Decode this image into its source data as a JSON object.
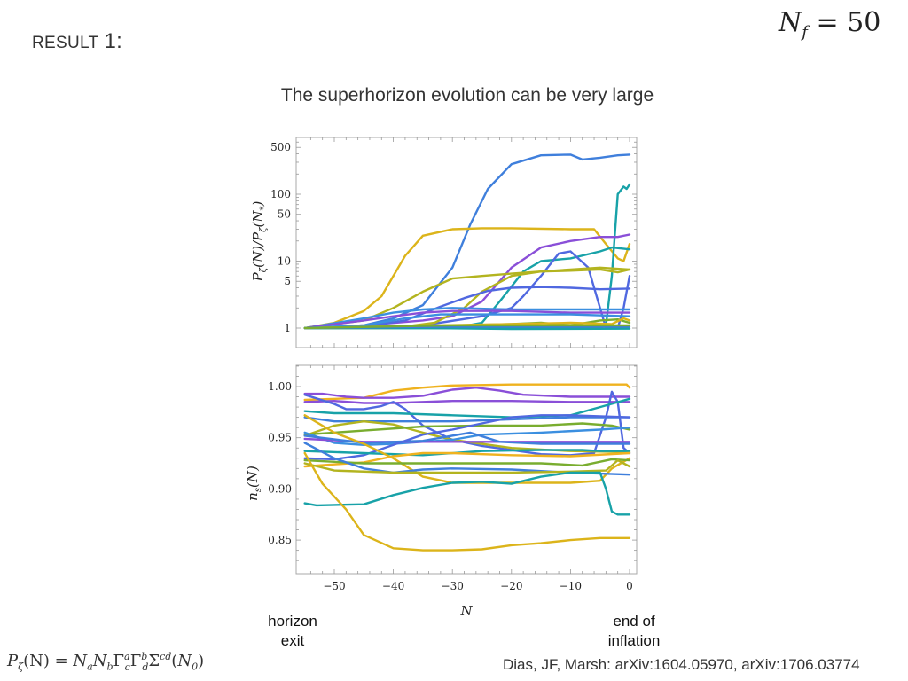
{
  "slide": {
    "heading_word": "RESULT",
    "heading_number": "1:",
    "nf_symbol": "N",
    "nf_subscript": "f",
    "nf_value": "= 50",
    "subtitle": "The superhorizon evolution can be very large",
    "formula": {
      "lhs": "P",
      "lhs_sub": "ζ",
      "lhs_arg": "(N) = ",
      "rhs": "N_a N_b Γ^a_c Γ^b_d Σ^{cd}(N_0)"
    },
    "annotations": {
      "horizon_exit": [
        "horizon",
        "exit"
      ],
      "end_of_inflation": [
        "end of",
        "inflation"
      ]
    },
    "citation": "Dias, JF, Marsh: arXiv:1604.05970, arXiv:1706.03774"
  },
  "palette": {
    "blue": "#3f7fdc",
    "yellow": "#dcb41a",
    "orange": "#efb21f",
    "purple": "#8a4fd8",
    "teal": "#18a2a8",
    "green": "#79ad2f",
    "olive": "#b3b41f",
    "royal": "#5068e0",
    "sky": "#3b8fe0",
    "frame": "#a9a9a9"
  },
  "chart_data": [
    {
      "type": "line",
      "title": "",
      "xlabel": "",
      "ylabel": "P_ζ(N)/P_ζ(N_*)",
      "yscale": "log",
      "xlim": [
        -55,
        0
      ],
      "ylim": [
        0.75,
        650
      ],
      "xticks": [
        -50,
        -40,
        -30,
        -20,
        -10,
        0
      ],
      "yticks": [
        1,
        5,
        10,
        50,
        100,
        500
      ],
      "ytick_labels": [
        "1",
        "5",
        "10",
        "50",
        "100",
        "500"
      ],
      "grid": false,
      "series": [
        {
          "name": "blue-large",
          "color": "blue",
          "x": [
            -55,
            -45,
            -40,
            -35,
            -30,
            -27,
            -24,
            -20,
            -15,
            -10,
            -8,
            -5,
            -2,
            0
          ],
          "y": [
            1,
            1.1,
            1.4,
            2.2,
            8,
            35,
            120,
            280,
            380,
            390,
            330,
            350,
            380,
            390
          ]
        },
        {
          "name": "yellow-plateau",
          "color": "yellow",
          "x": [
            -55,
            -50,
            -45,
            -42,
            -38,
            -35,
            -30,
            -25,
            -20,
            -10,
            -6,
            -4,
            -2,
            -1,
            0
          ],
          "y": [
            1,
            1.2,
            1.8,
            3,
            12,
            24,
            30,
            31,
            31,
            30,
            30,
            18,
            11,
            10,
            18
          ]
        },
        {
          "name": "teal-late",
          "color": "teal",
          "x": [
            -55,
            -30,
            -10,
            -5,
            -4,
            -3,
            -2,
            -1,
            -0.5,
            0
          ],
          "y": [
            1,
            1,
            1,
            1,
            1.1,
            6,
            100,
            130,
            120,
            140
          ]
        },
        {
          "name": "purple-rise",
          "color": "purple",
          "x": [
            -55,
            -45,
            -35,
            -30,
            -25,
            -20,
            -15,
            -10,
            -5,
            -2,
            0
          ],
          "y": [
            1,
            1.1,
            1.3,
            1.5,
            2.5,
            8,
            16,
            20,
            23,
            23,
            25
          ]
        },
        {
          "name": "teal-mid",
          "color": "teal",
          "x": [
            -55,
            -40,
            -30,
            -25,
            -22,
            -18,
            -15,
            -10,
            -5,
            -3,
            0
          ],
          "y": [
            1,
            1,
            1,
            1.2,
            2.5,
            7,
            10,
            11,
            14,
            16,
            15
          ]
        },
        {
          "name": "royal-spike",
          "color": "royal",
          "x": [
            -55,
            -35,
            -25,
            -20,
            -18,
            -15,
            -12,
            -10,
            -7,
            -5,
            -4,
            -2,
            -1,
            0
          ],
          "y": [
            1,
            1.1,
            1.5,
            2,
            3,
            6,
            13,
            14,
            8,
            2,
            1,
            1,
            2,
            6
          ]
        },
        {
          "name": "olive-high",
          "color": "olive",
          "x": [
            -55,
            -45,
            -40,
            -35,
            -30,
            -25,
            -20,
            -15,
            -10,
            -5,
            -2,
            0
          ],
          "y": [
            1,
            1.3,
            2,
            3.5,
            5.5,
            6,
            6.5,
            7,
            7.2,
            7.5,
            6.8,
            7.5
          ]
        },
        {
          "name": "green-rise",
          "color": "olive",
          "x": [
            -55,
            -40,
            -33,
            -28,
            -25,
            -20,
            -15,
            -10,
            -5,
            0
          ],
          "y": [
            1,
            1,
            1.2,
            2,
            3.5,
            6,
            7,
            7.5,
            8,
            7.5
          ]
        },
        {
          "name": "blue-mid",
          "color": "royal",
          "x": [
            -55,
            -45,
            -38,
            -32,
            -28,
            -24,
            -20,
            -15,
            -10,
            -5,
            0
          ],
          "y": [
            1,
            1.05,
            1.3,
            2.1,
            2.8,
            3.6,
            4,
            4.1,
            4,
            3.8,
            3.9
          ]
        },
        {
          "name": "sky-1",
          "color": "sky",
          "x": [
            -55,
            -45,
            -40,
            -35,
            -30,
            -20,
            -10,
            0
          ],
          "y": [
            1,
            1.4,
            1.7,
            1.9,
            2,
            1.9,
            1.9,
            1.9
          ]
        },
        {
          "name": "purple-2",
          "color": "purple",
          "x": [
            -55,
            -45,
            -40,
            -35,
            -30,
            -20,
            -10,
            0
          ],
          "y": [
            1,
            1.3,
            1.5,
            1.7,
            1.8,
            1.8,
            1.7,
            1.7
          ]
        },
        {
          "name": "sky-2",
          "color": "sky",
          "x": [
            -55,
            -45,
            -38,
            -32,
            -25,
            -20,
            -10,
            0
          ],
          "y": [
            1,
            1.1,
            1.4,
            1.6,
            1.6,
            1.6,
            1.6,
            1.5
          ]
        },
        {
          "name": "green-low",
          "color": "green",
          "x": [
            -55,
            -30,
            -20,
            -15,
            -10,
            -5,
            -2,
            0
          ],
          "y": [
            1,
            1.1,
            1.15,
            1.2,
            1.1,
            1.3,
            1.35,
            1.2
          ]
        },
        {
          "name": "yellow-low",
          "color": "yellow",
          "x": [
            -55,
            -20,
            -10,
            -3,
            -1,
            0
          ],
          "y": [
            1,
            1.15,
            1.2,
            1.15,
            1.4,
            1.3
          ]
        },
        {
          "name": "teal-flat",
          "color": "teal",
          "x": [
            -55,
            -35,
            -20,
            0
          ],
          "y": [
            1,
            1,
            0.97,
            0.98
          ]
        },
        {
          "name": "blue-flat",
          "color": "blue",
          "x": [
            -55,
            -30,
            0
          ],
          "y": [
            1,
            1.05,
            1.05
          ]
        },
        {
          "name": "green-flat",
          "color": "green",
          "x": [
            -55,
            -30,
            0
          ],
          "y": [
            1,
            1.1,
            1.1
          ]
        }
      ]
    },
    {
      "type": "line",
      "title": "",
      "xlabel": "N",
      "ylabel": "n_s(N)",
      "xlim": [
        -56,
        1
      ],
      "ylim": [
        0.828,
        1.022
      ],
      "xticks": [
        -50,
        -40,
        -30,
        -20,
        -10,
        0
      ],
      "xtick_labels": [
        "−50",
        "−40",
        "−30",
        "−20",
        "−10",
        "0"
      ],
      "yticks": [
        0.85,
        0.9,
        0.95,
        1.0
      ],
      "ytick_labels": [
        "0.85",
        "0.90",
        "0.95",
        "1.00"
      ],
      "grid": false,
      "series": [
        {
          "name": "orange-top",
          "color": "orange",
          "x": [
            -55,
            -45,
            -40,
            -35,
            -30,
            -20,
            -10,
            -0.5,
            0
          ],
          "y": [
            0.987,
            0.989,
            0.996,
            0.999,
            1.001,
            1.002,
            1.002,
            1.002,
            0.999
          ]
        },
        {
          "name": "purple-top",
          "color": "purple",
          "x": [
            -55,
            -52,
            -48,
            -45,
            -40,
            -35,
            -30,
            -26,
            -22,
            -18,
            -10,
            0
          ],
          "y": [
            0.993,
            0.993,
            0.99,
            0.989,
            0.989,
            0.991,
            0.997,
            0.999,
            0.996,
            0.992,
            0.99,
            0.99
          ]
        },
        {
          "name": "purple-flat",
          "color": "purple",
          "x": [
            -55,
            -50,
            -45,
            -40,
            -35,
            -30,
            -20,
            -10,
            0
          ],
          "y": [
            0.985,
            0.986,
            0.984,
            0.984,
            0.985,
            0.986,
            0.986,
            0.985,
            0.985
          ]
        },
        {
          "name": "royal-cross",
          "color": "royal",
          "x": [
            -55,
            -50,
            -48,
            -45,
            -42,
            -40,
            -38,
            -35,
            -30,
            -25,
            -20,
            -15,
            -10,
            -6,
            -4,
            -3,
            -2,
            -1,
            0
          ],
          "y": [
            0.992,
            0.983,
            0.978,
            0.978,
            0.981,
            0.985,
            0.978,
            0.962,
            0.948,
            0.942,
            0.938,
            0.934,
            0.933,
            0.935,
            0.97,
            0.995,
            0.985,
            0.94,
            0.935
          ]
        },
        {
          "name": "teal-977",
          "color": "teal",
          "x": [
            -55,
            -50,
            -40,
            -30,
            -20,
            -10,
            -5,
            0
          ],
          "y": [
            0.976,
            0.974,
            0.974,
            0.972,
            0.97,
            0.972,
            0.98,
            0.988
          ]
        },
        {
          "name": "blue-970",
          "color": "blue",
          "x": [
            -55,
            -50,
            -40,
            -30,
            -20,
            -10,
            0
          ],
          "y": [
            0.97,
            0.966,
            0.966,
            0.966,
            0.968,
            0.97,
            0.97
          ]
        },
        {
          "name": "olive-arch",
          "color": "olive",
          "x": [
            -55,
            -50,
            -45,
            -40,
            -35,
            -30,
            -20,
            -10,
            0
          ],
          "y": [
            0.952,
            0.962,
            0.966,
            0.963,
            0.955,
            0.948,
            0.94,
            0.937,
            0.936
          ]
        },
        {
          "name": "green-960",
          "color": "green",
          "x": [
            -55,
            -45,
            -35,
            -25,
            -15,
            -8,
            -3,
            0
          ],
          "y": [
            0.953,
            0.957,
            0.961,
            0.962,
            0.962,
            0.964,
            0.962,
            0.958
          ]
        },
        {
          "name": "sky-960",
          "color": "sky",
          "x": [
            -55,
            -50,
            -45,
            -40,
            -35,
            -30,
            -25,
            -15,
            -5,
            0
          ],
          "y": [
            0.955,
            0.945,
            0.943,
            0.944,
            0.946,
            0.948,
            0.953,
            0.955,
            0.958,
            0.96
          ]
        },
        {
          "name": "purple-945",
          "color": "purple",
          "x": [
            -55,
            -45,
            -30,
            -15,
            0
          ],
          "y": [
            0.949,
            0.946,
            0.946,
            0.946,
            0.946
          ]
        },
        {
          "name": "blue-945",
          "color": "blue",
          "x": [
            -55,
            -45,
            -35,
            -27,
            -22,
            -15,
            0
          ],
          "y": [
            0.952,
            0.945,
            0.947,
            0.955,
            0.946,
            0.944,
            0.944
          ]
        },
        {
          "name": "royal-rise",
          "color": "royal",
          "x": [
            -55,
            -50,
            -45,
            -40,
            -35,
            -30,
            -25,
            -20,
            -15,
            -10,
            0
          ],
          "y": [
            0.93,
            0.929,
            0.933,
            0.943,
            0.953,
            0.958,
            0.964,
            0.97,
            0.972,
            0.972,
            0.97
          ]
        },
        {
          "name": "teal-937",
          "color": "teal",
          "x": [
            -55,
            -45,
            -35,
            -25,
            -15,
            -8,
            -5,
            0
          ],
          "y": [
            0.937,
            0.935,
            0.933,
            0.937,
            0.938,
            0.938,
            0.937,
            0.937
          ]
        },
        {
          "name": "yellow-drop",
          "color": "yellow",
          "x": [
            -55,
            -50,
            -45,
            -40,
            -35,
            -30,
            -20,
            -10,
            -5,
            -3,
            0
          ],
          "y": [
            0.972,
            0.955,
            0.944,
            0.93,
            0.912,
            0.906,
            0.906,
            0.906,
            0.908,
            0.92,
            0.93
          ]
        },
        {
          "name": "orange-935",
          "color": "orange",
          "x": [
            -55,
            -45,
            -40,
            -35,
            -30,
            -20,
            -10,
            0
          ],
          "y": [
            0.922,
            0.926,
            0.932,
            0.935,
            0.935,
            0.933,
            0.932,
            0.935
          ]
        },
        {
          "name": "green-925",
          "color": "green",
          "x": [
            -55,
            -45,
            -35,
            -25,
            -15,
            -8,
            -3,
            0
          ],
          "y": [
            0.928,
            0.925,
            0.925,
            0.925,
            0.925,
            0.923,
            0.929,
            0.928
          ]
        },
        {
          "name": "blue-918",
          "color": "blue",
          "x": [
            -55,
            -50,
            -45,
            -40,
            -35,
            -30,
            -20,
            -10,
            0
          ],
          "y": [
            0.945,
            0.93,
            0.92,
            0.916,
            0.919,
            0.92,
            0.919,
            0.916,
            0.914
          ]
        },
        {
          "name": "olive-917",
          "color": "olive",
          "x": [
            -55,
            -50,
            -40,
            -30,
            -20,
            -10,
            -4,
            -2,
            0
          ],
          "y": [
            0.925,
            0.918,
            0.916,
            0.916,
            0.916,
            0.917,
            0.918,
            0.928,
            0.922
          ]
        },
        {
          "name": "teal-low",
          "color": "teal",
          "x": [
            -55,
            -53,
            -45,
            -40,
            -35,
            -30,
            -25,
            -20,
            -15,
            -10,
            -5,
            -4,
            -3,
            -2,
            0
          ],
          "y": [
            0.886,
            0.884,
            0.885,
            0.894,
            0.901,
            0.906,
            0.907,
            0.905,
            0.912,
            0.916,
            0.916,
            0.9,
            0.878,
            0.875,
            0.875
          ]
        },
        {
          "name": "yellow-bottom",
          "color": "yellow",
          "x": [
            -55,
            -52,
            -48,
            -45,
            -40,
            -35,
            -30,
            -25,
            -20,
            -15,
            -10,
            -5,
            0
          ],
          "y": [
            0.935,
            0.905,
            0.88,
            0.855,
            0.842,
            0.84,
            0.84,
            0.841,
            0.845,
            0.847,
            0.85,
            0.852,
            0.852
          ]
        }
      ]
    }
  ]
}
